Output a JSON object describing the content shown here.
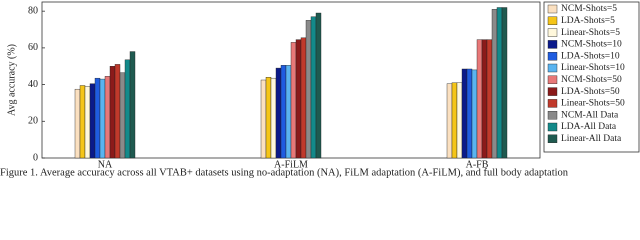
{
  "chart_data": {
    "type": "bar",
    "y_label": "Avg accuracy (%)",
    "caption": "Figure 1. Average accuracy across all VTAB+ datasets using no-adaptation (NA), FiLM adaptation (A-FiLM), and full body adaptation",
    "categories": [
      "NA",
      "A-FiLM",
      "A-FB"
    ],
    "ylim": [
      0,
      85
    ],
    "yticks": [
      0,
      20,
      40,
      60,
      80
    ],
    "series": [
      {
        "name": "NCM-Shots=5",
        "color": "#fbe0c0",
        "values": [
          37.5,
          42.5,
          40.5
        ]
      },
      {
        "name": "LDA-Shots=5",
        "color": "#f5c518",
        "values": [
          39.5,
          44,
          41
        ]
      },
      {
        "name": "Linear-Shots=5",
        "color": "#fff8dc",
        "values": [
          39,
          43.5,
          41
        ]
      },
      {
        "name": "NCM-Shots=10",
        "color": "#0b1a8a",
        "values": [
          40.5,
          49,
          48.5
        ]
      },
      {
        "name": "LDA-Shots=10",
        "color": "#1f5ce0",
        "values": [
          43.5,
          50.5,
          48.5
        ]
      },
      {
        "name": "Linear-Shots=10",
        "color": "#5ab4f0",
        "values": [
          43,
          50.5,
          48
        ]
      },
      {
        "name": "NCM-Shots=50",
        "color": "#e87878",
        "values": [
          44.5,
          63,
          64.5
        ]
      },
      {
        "name": "LDA-Shots=50",
        "color": "#8b1a1a",
        "values": [
          50,
          64.5,
          64.5
        ]
      },
      {
        "name": "Linear-Shots=50",
        "color": "#c0392b",
        "values": [
          51,
          65.5,
          64.5
        ]
      },
      {
        "name": "NCM-All Data",
        "color": "#8a8a8a",
        "values": [
          46.5,
          75,
          81
        ]
      },
      {
        "name": "LDA-All Data",
        "color": "#138a8a",
        "values": [
          53.5,
          77,
          82
        ]
      },
      {
        "name": "Linear-All Data",
        "color": "#1f5a50",
        "values": [
          58,
          79,
          82
        ]
      }
    ]
  }
}
